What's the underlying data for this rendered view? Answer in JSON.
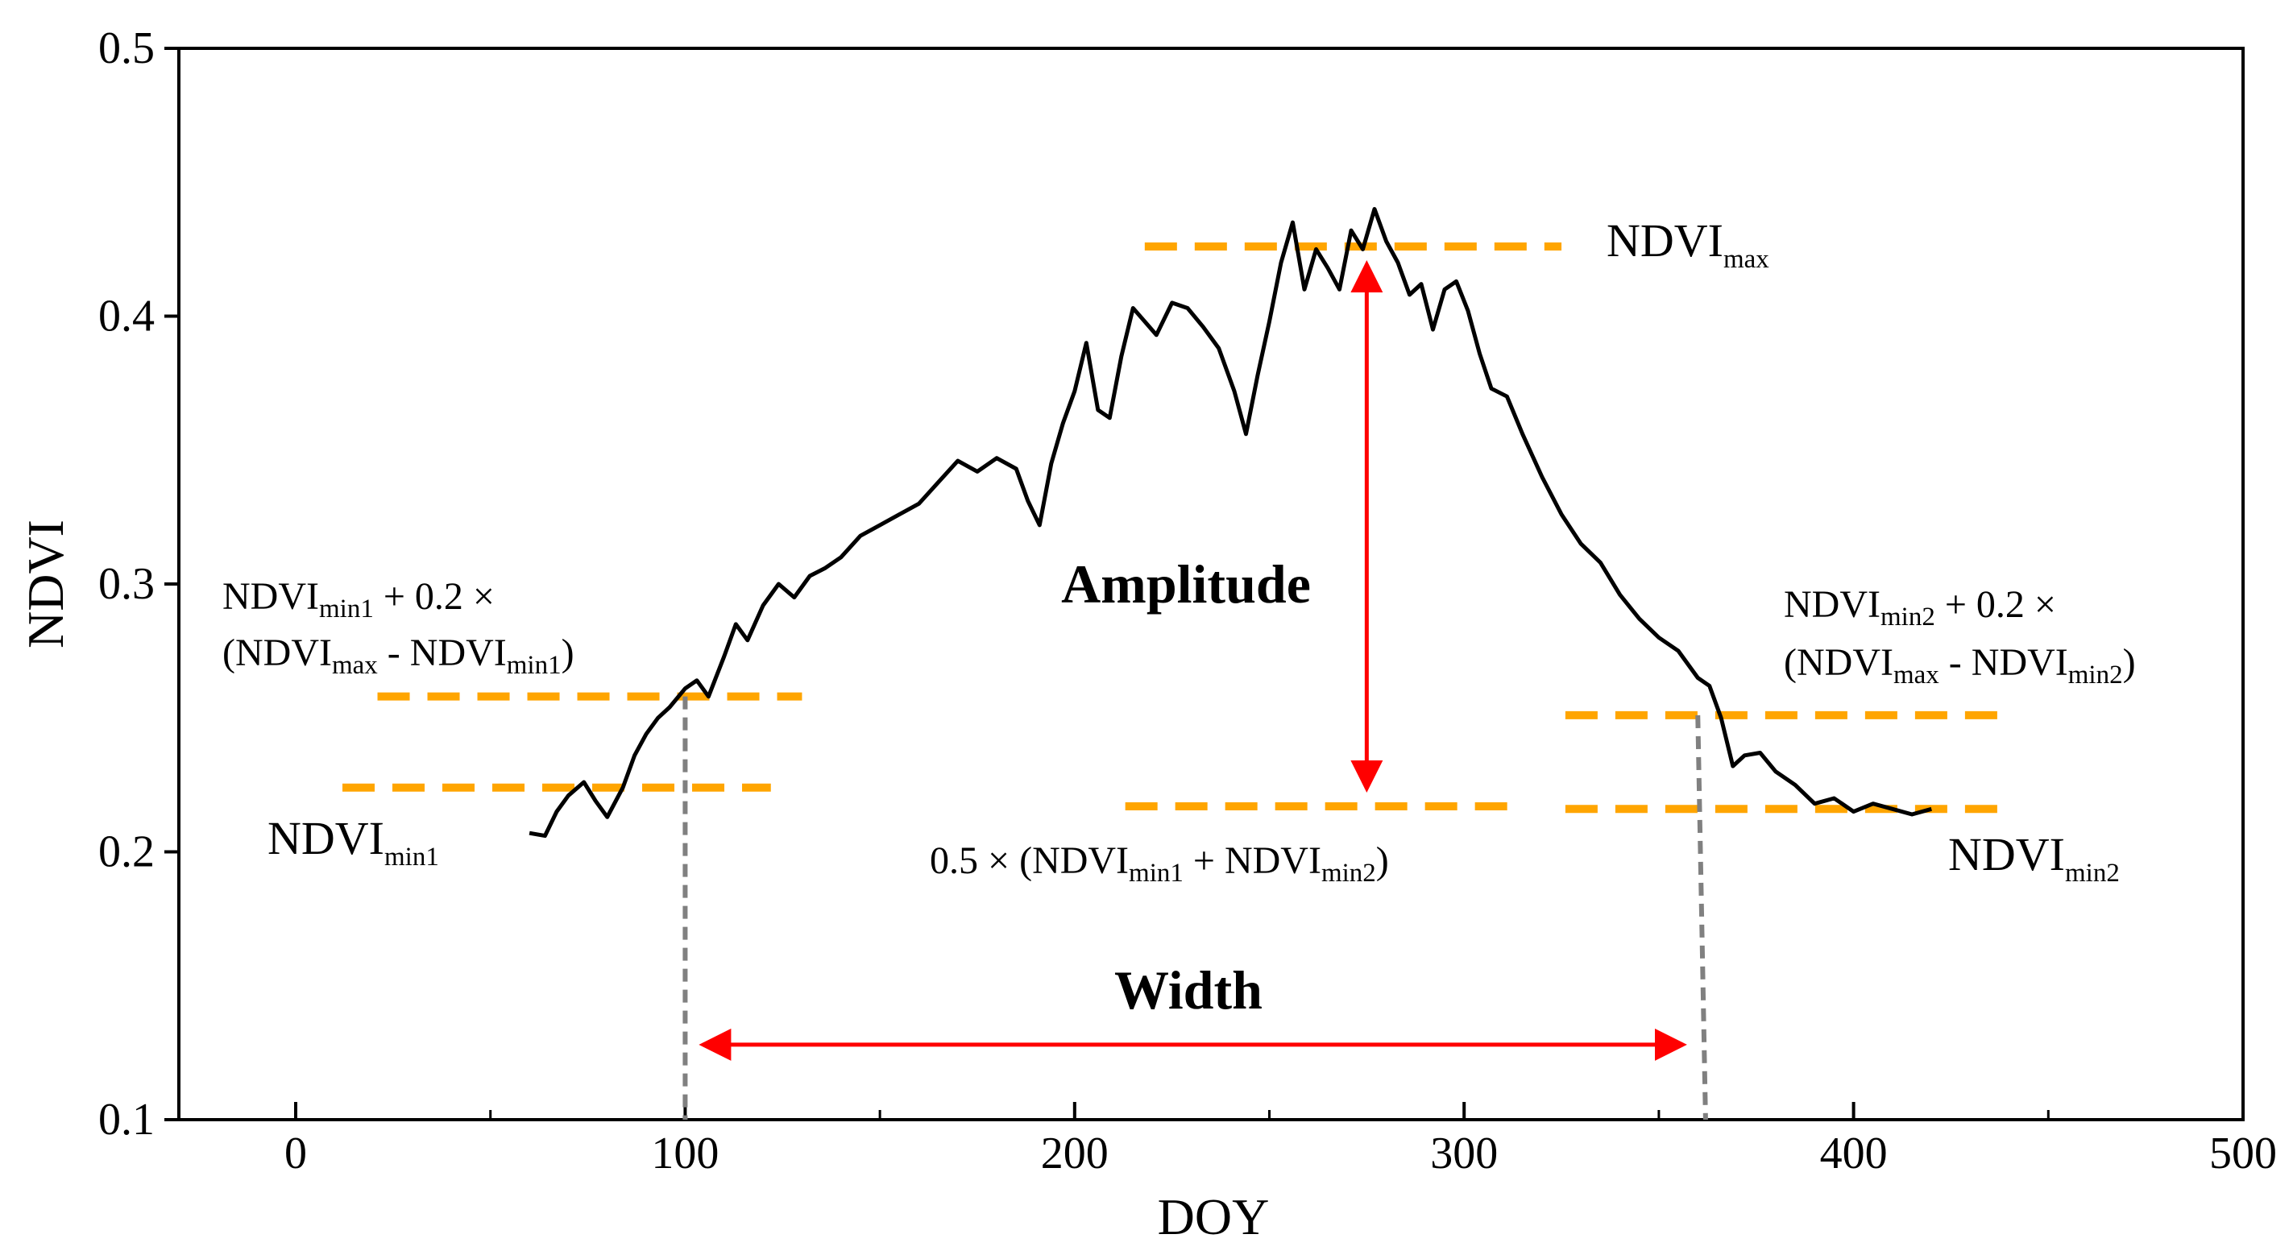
{
  "chart_data": {
    "type": "line",
    "title": "",
    "xlabel": "DOY",
    "ylabel": "NDVI",
    "xlim": [
      -30,
      500
    ],
    "ylim": [
      0.1,
      0.5
    ],
    "xticks": [
      0,
      100,
      200,
      300,
      400,
      500
    ],
    "xtick_labels": [
      "0",
      "100",
      "200",
      "300",
      "400",
      "500"
    ],
    "yticks": [
      0.1,
      0.2,
      0.3,
      0.4,
      0.5
    ],
    "ytick_labels": [
      "0.1",
      "0.2",
      "0.3",
      "0.4",
      "0.5"
    ],
    "grid": false,
    "series": [
      {
        "name": "NDVI",
        "color": "#000000",
        "x": [
          60,
          64,
          67,
          70,
          74,
          77,
          80,
          84,
          87,
          90,
          93,
          96,
          100,
          103,
          106,
          110,
          113,
          116,
          120,
          124,
          128,
          132,
          136,
          140,
          145,
          150,
          155,
          160,
          165,
          170,
          175,
          180,
          185,
          188,
          191,
          194,
          197,
          200,
          203,
          206,
          209,
          212,
          215,
          218,
          221,
          225,
          229,
          233,
          237,
          241,
          244,
          247,
          250,
          253,
          256,
          259,
          262,
          265,
          268,
          271,
          274,
          277,
          280,
          283,
          286,
          289,
          292,
          295,
          298,
          301,
          304,
          307,
          311,
          315,
          320,
          325,
          330,
          335,
          340,
          345,
          350,
          355,
          360,
          363,
          366,
          369,
          372,
          376,
          380,
          385,
          390,
          395,
          400,
          405,
          410,
          415,
          420
        ],
        "values": [
          0.207,
          0.206,
          0.215,
          0.221,
          0.226,
          0.219,
          0.213,
          0.224,
          0.236,
          0.244,
          0.25,
          0.254,
          0.261,
          0.264,
          0.258,
          0.273,
          0.285,
          0.279,
          0.292,
          0.3,
          0.295,
          0.303,
          0.306,
          0.31,
          0.318,
          0.322,
          0.326,
          0.33,
          0.338,
          0.346,
          0.342,
          0.347,
          0.343,
          0.331,
          0.322,
          0.345,
          0.36,
          0.372,
          0.39,
          0.365,
          0.362,
          0.385,
          0.403,
          0.398,
          0.393,
          0.405,
          0.403,
          0.396,
          0.388,
          0.372,
          0.356,
          0.378,
          0.398,
          0.42,
          0.435,
          0.41,
          0.425,
          0.418,
          0.41,
          0.432,
          0.425,
          0.44,
          0.428,
          0.42,
          0.408,
          0.412,
          0.395,
          0.41,
          0.413,
          0.402,
          0.386,
          0.373,
          0.37,
          0.356,
          0.34,
          0.326,
          0.315,
          0.308,
          0.296,
          0.287,
          0.28,
          0.275,
          0.265,
          0.262,
          0.25,
          0.232,
          0.236,
          0.237,
          0.23,
          0.225,
          0.218,
          0.22,
          0.215,
          0.218,
          0.216,
          0.214,
          0.216
        ]
      }
    ],
    "reference_lines": {
      "ndvi_max": 0.426,
      "ndvi_min1": 0.224,
      "ndvi_min2": 0.216,
      "mean_min": 0.217,
      "threshold1": 0.258,
      "threshold2": 0.251
    },
    "markers": {
      "start_doy": 100,
      "end_doy": 362
    },
    "annotations": {
      "amplitude": "Amplitude",
      "width": "Width",
      "ndvi_base": "NDVI",
      "ndvi_max_sub": "max",
      "ndvi_min1_sub": "min1",
      "ndvi_min2_sub": "min2",
      "threshold_plus": " + 0.2 ×",
      "threshold_open": "(",
      "threshold_minus": " - ",
      "threshold_close": ")",
      "mid_prefix": "0.5 × (",
      "mid_plus": " + ",
      "mid_close": ")"
    },
    "colors": {
      "line": "#000000",
      "dashed": "#FFA500",
      "arrows": "#FF0000",
      "markers": "#808080"
    }
  }
}
